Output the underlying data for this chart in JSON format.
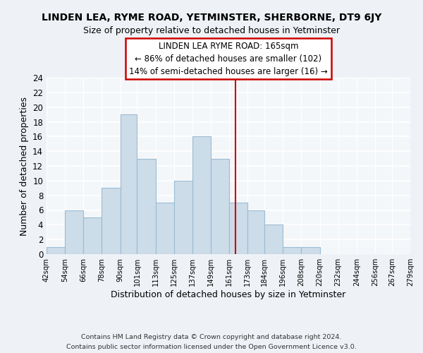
{
  "title": "LINDEN LEA, RYME ROAD, YETMINSTER, SHERBORNE, DT9 6JY",
  "subtitle": "Size of property relative to detached houses in Yetminster",
  "xlabel": "Distribution of detached houses by size in Yetminster",
  "ylabel": "Number of detached properties",
  "bin_edges": [
    42,
    54,
    66,
    78,
    90,
    101,
    113,
    125,
    137,
    149,
    161,
    173,
    184,
    196,
    208,
    220,
    232,
    244,
    256,
    267,
    279
  ],
  "bin_labels": [
    "42sqm",
    "54sqm",
    "66sqm",
    "78sqm",
    "90sqm",
    "101sqm",
    "113sqm",
    "125sqm",
    "137sqm",
    "149sqm",
    "161sqm",
    "173sqm",
    "184sqm",
    "196sqm",
    "208sqm",
    "220sqm",
    "232sqm",
    "244sqm",
    "256sqm",
    "267sqm",
    "279sqm"
  ],
  "counts": [
    1,
    6,
    5,
    9,
    19,
    13,
    7,
    10,
    16,
    13,
    7,
    6,
    4,
    1,
    1,
    0,
    0,
    0,
    0,
    0
  ],
  "bar_color": "#ccdce8",
  "bar_edgecolor": "#9bbcd4",
  "vline_x": 165,
  "vline_color": "#cc0000",
  "ylim": [
    0,
    24
  ],
  "yticks": [
    0,
    2,
    4,
    6,
    8,
    10,
    12,
    14,
    16,
    18,
    20,
    22,
    24
  ],
  "annotation_title": "LINDEN LEA RYME ROAD: 165sqm",
  "annotation_line1": "← 86% of detached houses are smaller (102)",
  "annotation_line2": "14% of semi-detached houses are larger (16) →",
  "footer_line1": "Contains HM Land Registry data © Crown copyright and database right 2024.",
  "footer_line2": "Contains public sector information licensed under the Open Government Licence v3.0.",
  "bg_color": "#eef2f7",
  "plot_bg_color": "#f4f7fa"
}
